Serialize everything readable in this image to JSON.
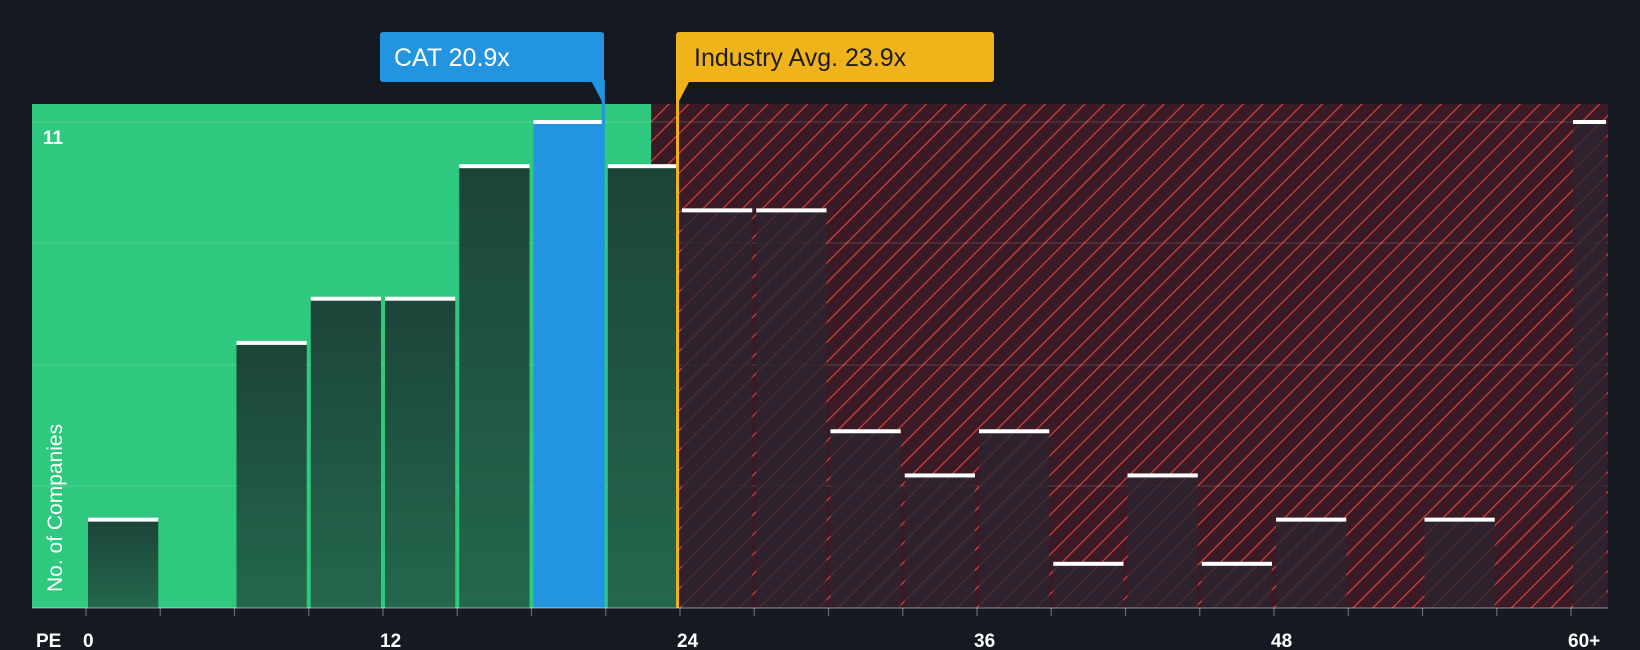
{
  "chart_data": {
    "type": "bar",
    "metric_label": "PE",
    "ylabel": "No. of Companies",
    "y_max_label": "11",
    "ylim": [
      0,
      11
    ],
    "bin_width": 3,
    "x_ticks": [
      {
        "value": 0,
        "label": "0"
      },
      {
        "value": 12,
        "label": "12"
      },
      {
        "value": 24,
        "label": "24"
      },
      {
        "value": 36,
        "label": "36"
      },
      {
        "value": 48,
        "label": "48"
      },
      {
        "value": 60,
        "label": "60+"
      }
    ],
    "bins": [
      {
        "start": 0,
        "count": 2
      },
      {
        "start": 3,
        "count": 0
      },
      {
        "start": 6,
        "count": 6
      },
      {
        "start": 9,
        "count": 7
      },
      {
        "start": 12,
        "count": 7
      },
      {
        "start": 15,
        "count": 10
      },
      {
        "start": 18,
        "count": 11,
        "highlight": true
      },
      {
        "start": 21,
        "count": 10
      },
      {
        "start": 24,
        "count": 9
      },
      {
        "start": 27,
        "count": 9
      },
      {
        "start": 30,
        "count": 4
      },
      {
        "start": 33,
        "count": 3
      },
      {
        "start": 36,
        "count": 4
      },
      {
        "start": 39,
        "count": 1
      },
      {
        "start": 42,
        "count": 3
      },
      {
        "start": 45,
        "count": 1
      },
      {
        "start": 48,
        "count": 2
      },
      {
        "start": 51,
        "count": 0
      },
      {
        "start": 54,
        "count": 2
      },
      {
        "start": 57,
        "count": 0
      },
      {
        "start": 60,
        "count": 11
      }
    ],
    "company": {
      "label": "CAT 20.9x",
      "value": 20.9
    },
    "industry": {
      "label": "Industry Avg. 23.9x",
      "value": 23.9
    }
  },
  "colors": {
    "background": "#151a22",
    "fair_zone": "#2ec97e",
    "over_zone": "#3a1a24",
    "hatch": "#d8413f",
    "bar_fair": "#1f4a3c",
    "bar_over": "#2a2530",
    "bar_highlight": "#2394e0",
    "cap": "#ffffff",
    "company_callout": "#2394e0",
    "industry_callout": "#f0b31a"
  }
}
